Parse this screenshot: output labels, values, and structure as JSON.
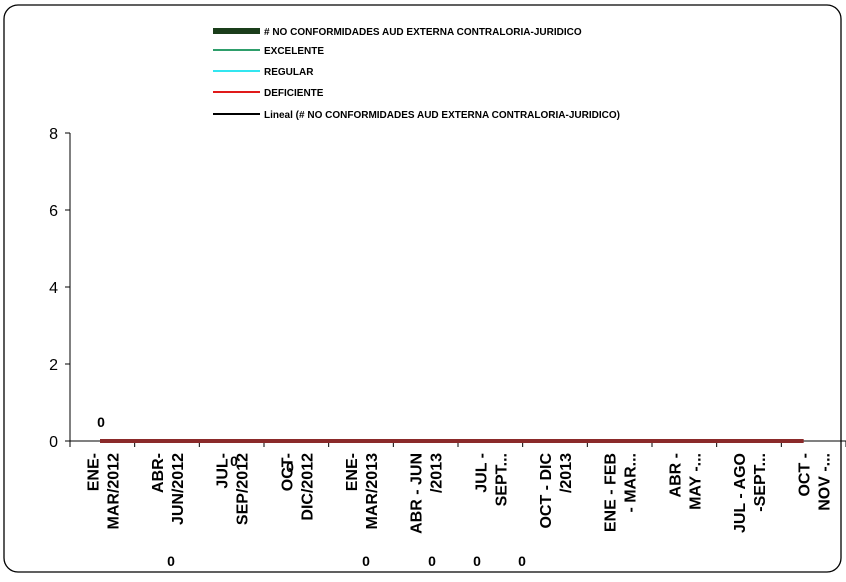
{
  "chart_data": {
    "type": "line",
    "title": "",
    "xlabel": "",
    "ylabel": "",
    "ylim": [
      0,
      8
    ],
    "yticks": [
      0,
      2,
      4,
      6,
      8
    ],
    "grid": false,
    "legend_position": "top",
    "categories": [
      [
        "ENE-",
        "MAR/2012"
      ],
      [
        "ABR-",
        "JUN/2012"
      ],
      [
        "JUL-",
        "SEP/2012"
      ],
      [
        "OCT-",
        "DIC/2012"
      ],
      [
        "ENE-",
        "MAR/2013"
      ],
      [
        "ABR - JUN",
        "/2013"
      ],
      [
        "JUL -",
        "SEPT..."
      ],
      [
        "OCT - DIC",
        "/2013"
      ],
      [
        "ENE - FEB",
        "- MAR..."
      ],
      [
        "ABR -",
        "MAY -..."
      ],
      [
        "JUL - AGO",
        "-SEPT..."
      ],
      [
        "OCT -",
        "NOV -..."
      ]
    ],
    "series": [
      {
        "name": "# NO CONFORMIDADES AUD EXTERNA CONTRALORIA-JURIDICO",
        "color": "#1a3d1a",
        "values": [
          0,
          0,
          0,
          0,
          0,
          0,
          0,
          0,
          0,
          0,
          0,
          0
        ]
      },
      {
        "name": "EXCELENTE",
        "color": "#2e9e6b",
        "values": [
          0,
          0,
          0,
          0,
          0,
          0,
          0,
          0,
          0,
          0,
          0,
          0
        ]
      },
      {
        "name": "REGULAR",
        "color": "#33e6f0",
        "values": [
          0,
          0,
          0,
          0,
          0,
          0,
          0,
          0,
          0,
          0,
          0,
          0
        ]
      },
      {
        "name": "DEFICIENTE",
        "color": "#e01a1a",
        "values": [
          0,
          0,
          0,
          0,
          0,
          0,
          0,
          0,
          0,
          0,
          0,
          0
        ]
      },
      {
        "name": "Lineal (# NO CONFORMIDADES AUD EXTERNA CONTRALORIA-JURIDICO)",
        "color": "#000000",
        "values": [
          0,
          0,
          0,
          0,
          0,
          0,
          0,
          0,
          0,
          0,
          0,
          0
        ]
      }
    ],
    "data_labels": [
      "0",
      "0",
      "0",
      "0",
      "0",
      "0",
      "0",
      "0",
      "0",
      "0",
      "0",
      "0"
    ],
    "main_line_color": "#8b2a2a"
  }
}
